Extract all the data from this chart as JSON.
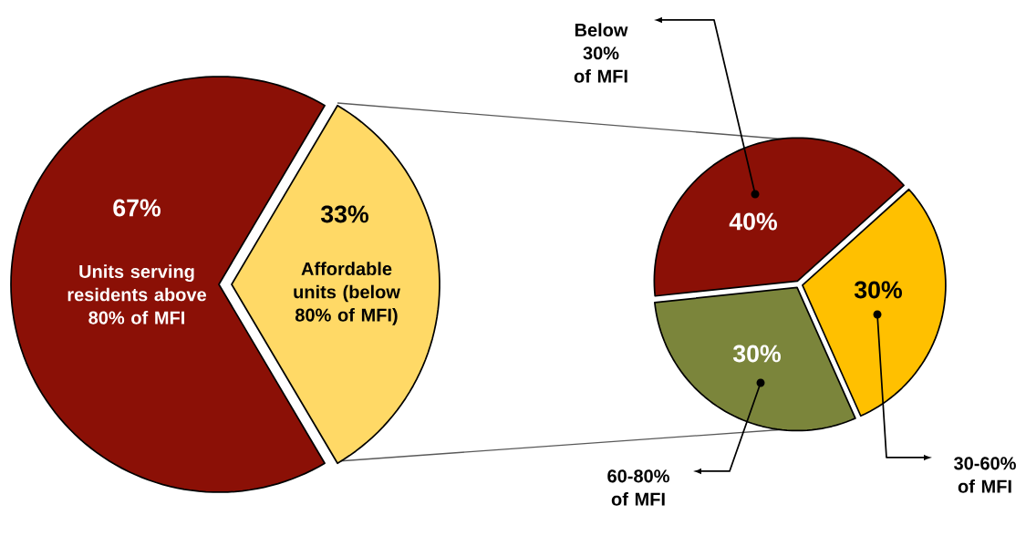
{
  "chart_data": [
    {
      "type": "pie",
      "categories": [
        "Units serving residents above 80% of MFI",
        "Affordable units (below 80% of MFI)"
      ],
      "values": [
        67,
        33
      ],
      "colors": [
        "#8b1006",
        "#ffd966"
      ],
      "value_labels": [
        "67%",
        "33%"
      ]
    },
    {
      "type": "pie",
      "categories": [
        "Below 30% of MFI",
        "30-60% of MFI",
        "60-80% of MFI"
      ],
      "values": [
        40,
        30,
        30
      ],
      "colors": [
        "#8b1006",
        "#ffc000",
        "#7b853b"
      ],
      "value_labels": [
        "40%",
        "30%",
        "30%"
      ]
    }
  ]
}
